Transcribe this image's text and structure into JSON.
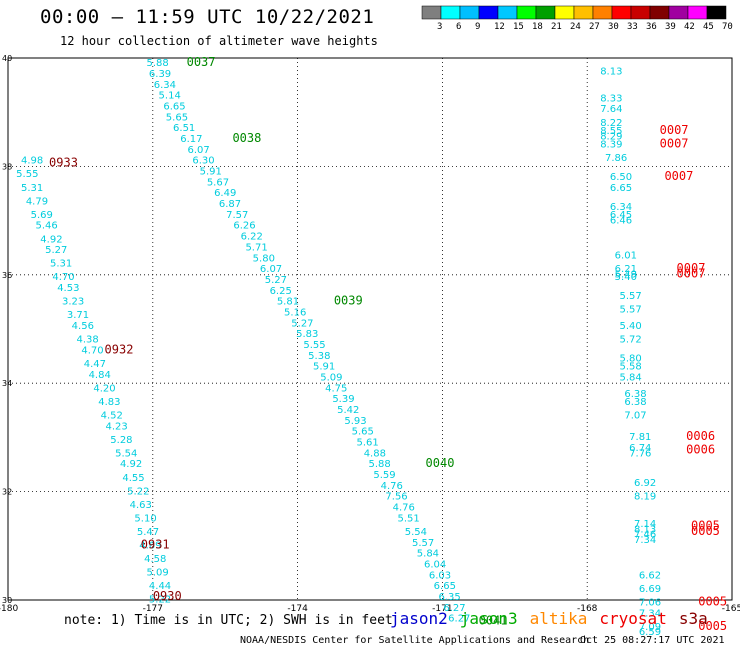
{
  "header": {
    "title": "00:00 – 11:59 UTC 10/22/2021",
    "subtitle": "12 hour collection of altimeter wave heights"
  },
  "color_scale": {
    "labels": [
      "3",
      "6",
      "9",
      "12",
      "15",
      "18",
      "21",
      "24",
      "27",
      "30",
      "33",
      "36",
      "39",
      "42",
      "45",
      "70",
      "(ft)"
    ],
    "colors": [
      "#7f7f7f",
      "#00ffff",
      "#00bfff",
      "#0000ff",
      "#00c8ff",
      "#00ff00",
      "#00a000",
      "#ffff00",
      "#ffbf00",
      "#ff8000",
      "#ff0000",
      "#c80000",
      "#800000",
      "#a000a0",
      "#ff00ff",
      "#000000"
    ]
  },
  "axes": {
    "x_ticks": [
      "-180",
      "-177",
      "-174",
      "-171",
      "-168",
      "-165"
    ],
    "y_ticks": [
      "40",
      "38",
      "36",
      "34",
      "32",
      "30"
    ]
  },
  "chart_data": {
    "type": "scatter",
    "xlim": [
      -180,
      -165
    ],
    "ylim": [
      30,
      40
    ],
    "grid": true,
    "swh_series": [
      {
        "name": "jason3",
        "color": "#00ccdd",
        "points": [
          {
            "x": -176.9,
            "y": 39.85,
            "v": "5.88"
          },
          {
            "x": -176.85,
            "y": 39.65,
            "v": "6.39"
          },
          {
            "x": -176.75,
            "y": 39.45,
            "v": "6.34"
          },
          {
            "x": -176.65,
            "y": 39.25,
            "v": "5.14"
          },
          {
            "x": -176.55,
            "y": 39.05,
            "v": "6.65"
          },
          {
            "x": -176.5,
            "y": 38.85,
            "v": "5.65"
          },
          {
            "x": -176.35,
            "y": 38.65,
            "v": "6.51"
          },
          {
            "x": -176.2,
            "y": 38.45,
            "v": "6.17"
          },
          {
            "x": -176.05,
            "y": 38.25,
            "v": "6.07"
          },
          {
            "x": -175.95,
            "y": 38.05,
            "v": "6.30"
          },
          {
            "x": -175.8,
            "y": 37.85,
            "v": "5.91"
          },
          {
            "x": -175.65,
            "y": 37.65,
            "v": "5.67"
          },
          {
            "x": -175.5,
            "y": 37.45,
            "v": "6.49"
          },
          {
            "x": -175.4,
            "y": 37.25,
            "v": "6.87"
          },
          {
            "x": -175.25,
            "y": 37.05,
            "v": "7.57"
          },
          {
            "x": -175.1,
            "y": 36.85,
            "v": "6.26"
          },
          {
            "x": -174.95,
            "y": 36.65,
            "v": "6.22"
          },
          {
            "x": -174.85,
            "y": 36.45,
            "v": "5.71"
          },
          {
            "x": -174.7,
            "y": 36.25,
            "v": "5.80"
          },
          {
            "x": -174.55,
            "y": 36.05,
            "v": "6.07"
          },
          {
            "x": -174.45,
            "y": 35.85,
            "v": "5.27"
          },
          {
            "x": -174.35,
            "y": 35.65,
            "v": "6.25"
          },
          {
            "x": -174.2,
            "y": 35.45,
            "v": "5.81"
          },
          {
            "x": -174.05,
            "y": 35.25,
            "v": "5.16"
          },
          {
            "x": -173.9,
            "y": 35.05,
            "v": "5.27"
          },
          {
            "x": -173.8,
            "y": 34.85,
            "v": "5.83"
          },
          {
            "x": -173.65,
            "y": 34.65,
            "v": "5.55"
          },
          {
            "x": -173.55,
            "y": 34.45,
            "v": "5.38"
          },
          {
            "x": -173.45,
            "y": 34.25,
            "v": "5.91"
          },
          {
            "x": -173.3,
            "y": 34.05,
            "v": "5.09"
          },
          {
            "x": -173.2,
            "y": 33.85,
            "v": "4.75"
          },
          {
            "x": -173.05,
            "y": 33.65,
            "v": "5.39"
          },
          {
            "x": -172.95,
            "y": 33.45,
            "v": "5.42"
          },
          {
            "x": -172.8,
            "y": 33.25,
            "v": "5.93"
          },
          {
            "x": -172.65,
            "y": 33.05,
            "v": "5.65"
          },
          {
            "x": -172.55,
            "y": 32.85,
            "v": "5.61"
          },
          {
            "x": -172.4,
            "y": 32.65,
            "v": "4.88"
          },
          {
            "x": -172.3,
            "y": 32.45,
            "v": "5.88"
          },
          {
            "x": -172.2,
            "y": 32.25,
            "v": "5.59"
          },
          {
            "x": -172.05,
            "y": 32.05,
            "v": "4.76"
          },
          {
            "x": -171.95,
            "y": 31.85,
            "v": "7.56"
          },
          {
            "x": -171.8,
            "y": 31.65,
            "v": "4.76"
          },
          {
            "x": -171.7,
            "y": 31.45,
            "v": "5.51"
          },
          {
            "x": -171.55,
            "y": 31.2,
            "v": "5.54"
          },
          {
            "x": -171.4,
            "y": 31.0,
            "v": "5.57"
          },
          {
            "x": -171.3,
            "y": 30.8,
            "v": "5.84"
          },
          {
            "x": -171.15,
            "y": 30.6,
            "v": "6.04"
          },
          {
            "x": -171.05,
            "y": 30.4,
            "v": "6.03"
          },
          {
            "x": -170.95,
            "y": 30.2,
            "v": "6.65"
          },
          {
            "x": -170.85,
            "y": 30.0,
            "v": "6.35"
          },
          {
            "x": -170.75,
            "y": 29.8,
            "v": "6.27"
          },
          {
            "x": -170.65,
            "y": 29.6,
            "v": "6.27"
          }
        ]
      },
      {
        "name": "cryosat",
        "color": "#00ccdd",
        "points": [
          {
            "x": -179.5,
            "y": 38.05,
            "v": "4.98"
          },
          {
            "x": -179.6,
            "y": 37.8,
            "v": "5.55"
          },
          {
            "x": -179.5,
            "y": 37.55,
            "v": "5.31"
          },
          {
            "x": -179.4,
            "y": 37.3,
            "v": "4.79"
          },
          {
            "x": -179.3,
            "y": 37.05,
            "v": "5.69"
          },
          {
            "x": -179.2,
            "y": 36.85,
            "v": "5.46"
          },
          {
            "x": -179.1,
            "y": 36.6,
            "v": "4.92"
          },
          {
            "x": -179.0,
            "y": 36.4,
            "v": "5.27"
          },
          {
            "x": -178.9,
            "y": 36.15,
            "v": "5.31"
          },
          {
            "x": -178.85,
            "y": 35.9,
            "v": "4.70"
          },
          {
            "x": -178.75,
            "y": 35.7,
            "v": "4.53"
          },
          {
            "x": -178.65,
            "y": 35.45,
            "v": "3.23"
          },
          {
            "x": -178.55,
            "y": 35.2,
            "v": "3.71"
          },
          {
            "x": -178.45,
            "y": 35.0,
            "v": "4.56"
          },
          {
            "x": -178.35,
            "y": 34.75,
            "v": "4.38"
          },
          {
            "x": -178.25,
            "y": 34.55,
            "v": "4.70"
          },
          {
            "x": -178.2,
            "y": 34.3,
            "v": "4.47"
          },
          {
            "x": -178.1,
            "y": 34.1,
            "v": "4.84"
          },
          {
            "x": -178.0,
            "y": 33.85,
            "v": "4.20"
          },
          {
            "x": -177.9,
            "y": 33.6,
            "v": "4.83"
          },
          {
            "x": -177.85,
            "y": 33.35,
            "v": "4.52"
          },
          {
            "x": -177.75,
            "y": 33.15,
            "v": "4.23"
          },
          {
            "x": -177.65,
            "y": 32.9,
            "v": "5.28"
          },
          {
            "x": -177.55,
            "y": 32.65,
            "v": "5.54"
          },
          {
            "x": -177.45,
            "y": 32.45,
            "v": "4.92"
          },
          {
            "x": -177.4,
            "y": 32.2,
            "v": "4.55"
          },
          {
            "x": -177.3,
            "y": 31.95,
            "v": "5.22"
          },
          {
            "x": -177.25,
            "y": 31.7,
            "v": "4.63"
          },
          {
            "x": -177.15,
            "y": 31.45,
            "v": "5.10"
          },
          {
            "x": -177.1,
            "y": 31.2,
            "v": "5.47"
          },
          {
            "x": -177.05,
            "y": 30.95,
            "v": "4.69"
          },
          {
            "x": -176.95,
            "y": 30.7,
            "v": "4.58"
          },
          {
            "x": -176.9,
            "y": 30.45,
            "v": "5.09"
          },
          {
            "x": -176.85,
            "y": 30.2,
            "v": "4.44"
          },
          {
            "x": -176.85,
            "y": 29.95,
            "v": "5.22"
          }
        ]
      },
      {
        "name": "s3a",
        "color": "#00ccdd",
        "points": [
          {
            "x": -167.5,
            "y": 39.7,
            "v": "8.13"
          },
          {
            "x": -167.5,
            "y": 39.2,
            "v": "8.33"
          },
          {
            "x": -167.5,
            "y": 39.0,
            "v": "7.64"
          },
          {
            "x": -167.5,
            "y": 38.75,
            "v": "8.22"
          },
          {
            "x": -167.5,
            "y": 38.6,
            "v": "8.55"
          },
          {
            "x": -167.5,
            "y": 38.5,
            "v": "8.29"
          },
          {
            "x": -167.5,
            "y": 38.35,
            "v": "8.39"
          },
          {
            "x": -167.4,
            "y": 38.1,
            "v": "7.86"
          },
          {
            "x": -167.3,
            "y": 37.75,
            "v": "6.50"
          },
          {
            "x": -167.3,
            "y": 37.55,
            "v": "6.65"
          },
          {
            "x": -167.3,
            "y": 37.2,
            "v": "6.34"
          },
          {
            "x": -167.3,
            "y": 37.05,
            "v": "6.45"
          },
          {
            "x": -167.3,
            "y": 36.95,
            "v": "6.46"
          },
          {
            "x": -167.2,
            "y": 36.3,
            "v": "6.01"
          },
          {
            "x": -167.2,
            "y": 36.05,
            "v": "6.21"
          },
          {
            "x": -167.2,
            "y": 35.95,
            "v": "5.49"
          },
          {
            "x": -167.2,
            "y": 35.9,
            "v": "5.40"
          },
          {
            "x": -167.1,
            "y": 35.55,
            "v": "5.57"
          },
          {
            "x": -167.1,
            "y": 35.3,
            "v": "5.57"
          },
          {
            "x": -167.1,
            "y": 35.0,
            "v": "5.40"
          },
          {
            "x": -167.1,
            "y": 34.75,
            "v": "5.72"
          },
          {
            "x": -167.1,
            "y": 34.4,
            "v": "5.80"
          },
          {
            "x": -167.1,
            "y": 34.25,
            "v": "5.58"
          },
          {
            "x": -167.1,
            "y": 34.05,
            "v": "5.84"
          },
          {
            "x": -167.0,
            "y": 33.75,
            "v": "6.38"
          },
          {
            "x": -167.0,
            "y": 33.6,
            "v": "6.38"
          },
          {
            "x": -167.0,
            "y": 33.35,
            "v": "7.07"
          },
          {
            "x": -166.9,
            "y": 32.95,
            "v": "7.81"
          },
          {
            "x": -166.9,
            "y": 32.75,
            "v": "6.74"
          },
          {
            "x": -166.9,
            "y": 32.65,
            "v": "7.76"
          },
          {
            "x": -166.8,
            "y": 32.1,
            "v": "6.92"
          },
          {
            "x": -166.8,
            "y": 31.85,
            "v": "8.19"
          },
          {
            "x": -166.8,
            "y": 31.35,
            "v": "7.14"
          },
          {
            "x": -166.8,
            "y": 31.25,
            "v": "8.13"
          },
          {
            "x": -166.8,
            "y": 31.15,
            "v": "7.46"
          },
          {
            "x": -166.8,
            "y": 31.05,
            "v": "7.34"
          },
          {
            "x": -166.7,
            "y": 30.4,
            "v": "6.62"
          },
          {
            "x": -166.7,
            "y": 30.15,
            "v": "6.69"
          },
          {
            "x": -166.7,
            "y": 29.9,
            "v": "7.06"
          },
          {
            "x": -166.7,
            "y": 29.7,
            "v": "7.34"
          },
          {
            "x": -166.7,
            "y": 29.45,
            "v": "7.09"
          },
          {
            "x": -166.7,
            "y": 29.35,
            "v": "6.59"
          }
        ]
      }
    ],
    "time_labels": [
      {
        "x": -176.0,
        "y": 39.85,
        "t": "0037",
        "color": "#008800"
      },
      {
        "x": -175.05,
        "y": 38.45,
        "t": "0038",
        "color": "#008800"
      },
      {
        "x": -172.95,
        "y": 35.45,
        "t": "0039",
        "color": "#008800"
      },
      {
        "x": -171.05,
        "y": 32.45,
        "t": "0040",
        "color": "#008800"
      },
      {
        "x": -169.95,
        "y": 29.55,
        "t": "0041",
        "color": "#008800"
      },
      {
        "x": -178.85,
        "y": 38.0,
        "t": "0933",
        "color": "#880000"
      },
      {
        "x": -177.7,
        "y": 34.55,
        "t": "0932",
        "color": "#880000"
      },
      {
        "x": -176.95,
        "y": 30.95,
        "t": "0931",
        "color": "#880000"
      },
      {
        "x": -176.7,
        "y": 30.0,
        "t": "0930",
        "color": "#880000"
      },
      {
        "x": -166.2,
        "y": 38.6,
        "t": "0007",
        "color": "#ee0000"
      },
      {
        "x": -166.2,
        "y": 38.35,
        "t": "0007",
        "color": "#ee0000"
      },
      {
        "x": -166.1,
        "y": 37.75,
        "t": "0007",
        "color": "#ee0000"
      },
      {
        "x": -165.85,
        "y": 36.05,
        "t": "0007",
        "color": "#ee0000"
      },
      {
        "x": -165.85,
        "y": 35.95,
        "t": "0007",
        "color": "#ee0000"
      },
      {
        "x": -165.65,
        "y": 32.95,
        "t": "0006",
        "color": "#ee0000"
      },
      {
        "x": -165.65,
        "y": 32.7,
        "t": "0006",
        "color": "#ee0000"
      },
      {
        "x": -165.55,
        "y": 31.3,
        "t": "0005",
        "color": "#ee0000"
      },
      {
        "x": -165.55,
        "y": 31.2,
        "t": "0005",
        "color": "#ee0000"
      },
      {
        "x": -165.4,
        "y": 29.9,
        "t": "0005",
        "color": "#ee0000"
      },
      {
        "x": -165.4,
        "y": 29.45,
        "t": "0005",
        "color": "#ee0000"
      }
    ]
  },
  "footer": {
    "note": "note: 1) Time is in UTC; 2) SWH is in feet",
    "legend": [
      {
        "label": "jason2",
        "color": "#0000cc"
      },
      {
        "label": "jason3",
        "color": "#00aa00"
      },
      {
        "label": "altika",
        "color": "#ff8800"
      },
      {
        "label": "cryosat",
        "color": "#ee0000"
      },
      {
        "label": "s3a",
        "color": "#880000"
      }
    ],
    "credit": "NOAA/NESDIS Center for Satellite Applications and Research",
    "timestamp": "Oct 25 08:27:17 UTC 2021"
  }
}
